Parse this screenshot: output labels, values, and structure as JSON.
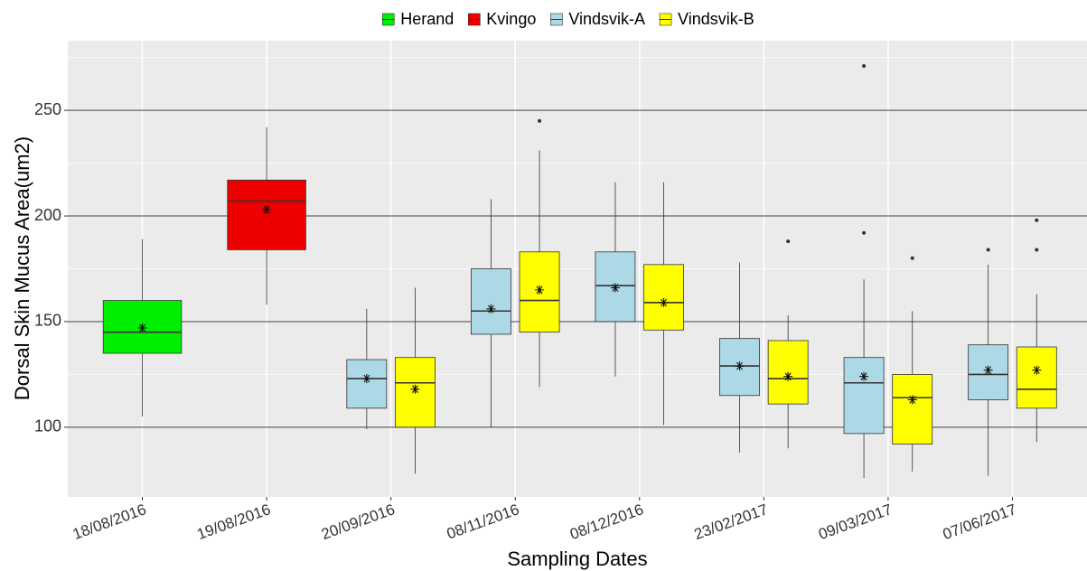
{
  "chart_data": {
    "type": "box",
    "x_label": "Sampling Dates",
    "y_label": "Dorsal Skin Mucus Area(um2)",
    "categories": [
      "18/08/2016",
      "19/08/2016",
      "20/09/2016",
      "08/11/2016",
      "08/12/2016",
      "23/02/2017",
      "09/03/2017",
      "07/06/2017"
    ],
    "ylim": [
      67,
      283
    ],
    "yticks": [
      100,
      150,
      200,
      250
    ],
    "minor_yticks": [
      125,
      175,
      225,
      275
    ],
    "grid": true,
    "legend": "top",
    "series": [
      {
        "name": "Herand",
        "color": "#00ee00",
        "boxes": [
          {
            "min": 105,
            "q1": 135,
            "median": 145,
            "q3": 160,
            "max": 189,
            "mean": 147,
            "outliers": []
          },
          null,
          null,
          null,
          null,
          null,
          null,
          null
        ]
      },
      {
        "name": "Kvingo",
        "color": "#ee0000",
        "boxes": [
          null,
          {
            "min": 158,
            "q1": 184,
            "median": 207,
            "q3": 217,
            "max": 242,
            "mean": 203,
            "outliers": []
          },
          null,
          null,
          null,
          null,
          null,
          null
        ]
      },
      {
        "name": "Vindsvik-A",
        "color": "#add8e6",
        "boxes": [
          null,
          null,
          {
            "min": 99,
            "q1": 109,
            "median": 123,
            "q3": 132,
            "max": 156,
            "mean": 123,
            "outliers": []
          },
          {
            "min": 100,
            "q1": 144,
            "median": 155,
            "q3": 175,
            "max": 208,
            "mean": 156,
            "outliers": []
          },
          {
            "min": 124,
            "q1": 150,
            "median": 167,
            "q3": 183,
            "max": 216,
            "mean": 166,
            "outliers": []
          },
          {
            "min": 88,
            "q1": 115,
            "median": 129,
            "q3": 142,
            "max": 178,
            "mean": 129,
            "outliers": []
          },
          {
            "min": 76,
            "q1": 97,
            "median": 121,
            "q3": 133,
            "max": 170,
            "mean": 124,
            "outliers": [
              192,
              271
            ]
          },
          {
            "min": 77,
            "q1": 113,
            "median": 125,
            "q3": 139,
            "max": 177,
            "mean": 127,
            "outliers": [
              184
            ]
          }
        ]
      },
      {
        "name": "Vindsvik-B",
        "color": "#ffff00",
        "boxes": [
          null,
          null,
          {
            "min": 78,
            "q1": 100,
            "median": 121,
            "q3": 133,
            "max": 166,
            "mean": 118,
            "outliers": []
          },
          {
            "min": 119,
            "q1": 145,
            "median": 160,
            "q3": 183,
            "max": 231,
            "mean": 165,
            "outliers": [
              245
            ]
          },
          {
            "min": 101,
            "q1": 146,
            "median": 159,
            "q3": 177,
            "max": 216,
            "mean": 159,
            "outliers": []
          },
          {
            "min": 90,
            "q1": 111,
            "median": 123,
            "q3": 141,
            "max": 153,
            "mean": 124,
            "outliers": [
              188
            ]
          },
          {
            "min": 79,
            "q1": 92,
            "median": 114,
            "q3": 125,
            "max": 155,
            "mean": 113,
            "outliers": [
              180
            ]
          },
          {
            "min": 93,
            "q1": 109,
            "median": 118,
            "q3": 138,
            "max": 163,
            "mean": 127,
            "outliers": [
              184,
              198
            ]
          }
        ]
      }
    ]
  }
}
